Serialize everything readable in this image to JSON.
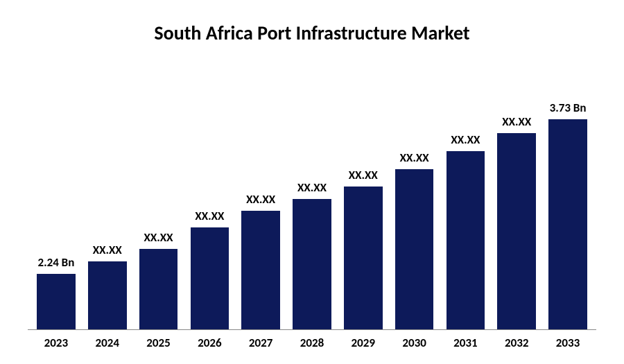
{
  "chart": {
    "type": "bar",
    "title": "South Africa Port Infrastructure Market",
    "title_fontsize": 28,
    "title_fontweight": 700,
    "title_color": "#000000",
    "background_color": "#ffffff",
    "bar_color": "#0d1a5a",
    "axis_color": "#888888",
    "label_color": "#000000",
    "label_fontsize": 17,
    "label_fontweight": 700,
    "bar_gap": 12,
    "max_value": 3.73,
    "categories": [
      "2023",
      "2024",
      "2025",
      "2026",
      "2027",
      "2028",
      "2029",
      "2030",
      "2031",
      "2032",
      "2033"
    ],
    "values": [
      2.24,
      2.36,
      2.49,
      2.62,
      2.76,
      2.91,
      3.06,
      3.22,
      3.38,
      3.55,
      3.73
    ],
    "value_labels": [
      "2.24 Bn",
      "XX.XX",
      "XX.XX",
      "XX.XX",
      "XX.XX",
      "XX.XX",
      "XX.XX",
      "XX.XX",
      "XX.XX",
      "XX.XX",
      "3.73 Bn"
    ],
    "heights_pct": [
      20.9,
      25.4,
      30.2,
      38.2,
      44.5,
      48.9,
      53.5,
      60.0,
      66.8,
      73.6,
      78.8
    ]
  }
}
